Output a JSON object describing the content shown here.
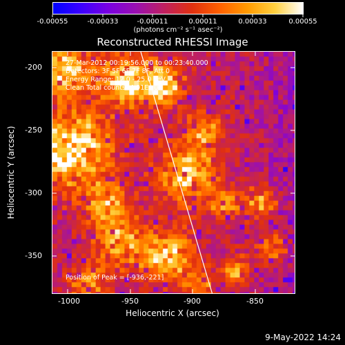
{
  "colorbar": {
    "ticks": [
      "-0.00055",
      "-0.00033",
      "-0.00011",
      "0.00011",
      "0.00033",
      "0.00055"
    ],
    "units": "(photons cm⁻² s⁻¹ asec⁻²)",
    "colormap": [
      "#0000ff",
      "#3b00ff",
      "#7a00e0",
      "#9a10b0",
      "#c02060",
      "#e03010",
      "#ff6000",
      "#ff9a00",
      "#ffd040",
      "#ffffff"
    ]
  },
  "title": "Reconstructed RHESSI Image",
  "overlay": {
    "line1": "27-Mar-2012 00:19:56.000 to 00:23:40.000",
    "line2": "Detectors: 3F 5F 6F 7F 8F, Att 0",
    "line3": "Energy Range: 12.0 - 25.0 keV",
    "line4": "Clean     Total counts: 4.91E+03",
    "peak": "Position of Peak = [-936,-221]"
  },
  "axes": {
    "xlabel": "Heliocentric X (arcsec)",
    "ylabel": "Heliocentric Y (arcsec)",
    "xticks": [
      "-1000",
      "-950",
      "-900",
      "-850"
    ],
    "yticks": [
      "-200",
      "-250",
      "-300",
      "-350"
    ],
    "xlim": [
      -1010,
      -820
    ],
    "ylim": [
      -380,
      -190
    ]
  },
  "datestamp": "9-May-2022 14:24"
}
